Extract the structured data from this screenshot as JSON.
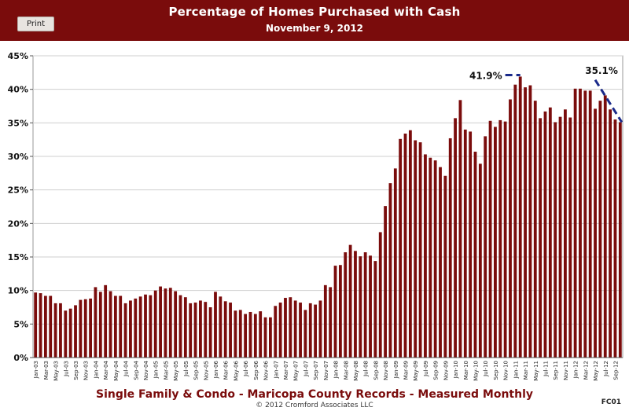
{
  "toolbar": {
    "print_label": "Print"
  },
  "footer": {
    "title": "Single Family & Condo - Maricopa County Records - Measured Monthly",
    "copyright": "© 2012 Cromford Associates LLC",
    "code": "FC01"
  },
  "colors": {
    "header": "#7a0c0c",
    "bar": "#7a0c0c",
    "trend": "#1a2a8a"
  },
  "chart_data": {
    "type": "bar",
    "title": "Percentage of Homes Purchased with Cash",
    "subtitle": "November 9, 2012",
    "xlabel": "",
    "ylabel": "",
    "ylim": [
      0,
      45
    ],
    "yticks": [
      0,
      5,
      10,
      15,
      20,
      25,
      30,
      35,
      40,
      45
    ],
    "ytick_labels": [
      "0%",
      "5%",
      "10%",
      "15%",
      "20%",
      "25%",
      "30%",
      "35%",
      "40%",
      "45%"
    ],
    "grid": true,
    "categories": [
      "Jan-03",
      "Feb-03",
      "Mar-03",
      "Apr-03",
      "May-03",
      "Jun-03",
      "Jul-03",
      "Aug-03",
      "Sep-03",
      "Oct-03",
      "Nov-03",
      "Dec-03",
      "Jan-04",
      "Feb-04",
      "Mar-04",
      "Apr-04",
      "May-04",
      "Jun-04",
      "Jul-04",
      "Aug-04",
      "Sep-04",
      "Oct-04",
      "Nov-04",
      "Dec-04",
      "Jan-05",
      "Feb-05",
      "Mar-05",
      "Apr-05",
      "May-05",
      "Jun-05",
      "Jul-05",
      "Aug-05",
      "Sep-05",
      "Oct-05",
      "Nov-05",
      "Dec-05",
      "Jan-06",
      "Feb-06",
      "Mar-06",
      "Apr-06",
      "May-06",
      "Jun-06",
      "Jul-06",
      "Aug-06",
      "Sep-06",
      "Oct-06",
      "Nov-06",
      "Dec-06",
      "Jan-07",
      "Feb-07",
      "Mar-07",
      "Apr-07",
      "May-07",
      "Jun-07",
      "Jul-07",
      "Aug-07",
      "Sep-07",
      "Oct-07",
      "Nov-07",
      "Dec-07",
      "Jan-08",
      "Feb-08",
      "Mar-08",
      "Apr-08",
      "May-08",
      "Jun-08",
      "Jul-08",
      "Aug-08",
      "Sep-08",
      "Oct-08",
      "Nov-08",
      "Dec-08",
      "Jan-09",
      "Feb-09",
      "Mar-09",
      "Apr-09",
      "May-09",
      "Jun-09",
      "Jul-09",
      "Aug-09",
      "Sep-09",
      "Oct-09",
      "Nov-09",
      "Dec-09",
      "Jan-10",
      "Feb-10",
      "Mar-10",
      "Apr-10",
      "May-10",
      "Jun-10",
      "Jul-10",
      "Aug-10",
      "Sep-10",
      "Oct-10",
      "Nov-10",
      "Dec-10",
      "Jan-11",
      "Feb-11",
      "Mar-11",
      "Apr-11",
      "May-11",
      "Jun-11",
      "Jul-11",
      "Aug-11",
      "Sep-11",
      "Oct-11",
      "Nov-11",
      "Dec-11",
      "Jan-12",
      "Feb-12",
      "Mar-12",
      "Apr-12",
      "May-12",
      "Jun-12",
      "Jul-12",
      "Aug-12",
      "Sep-12",
      "Oct-12"
    ],
    "tick_label_every": 2,
    "series": [
      {
        "values": [
          9.7,
          9.6,
          9.2,
          9.2,
          8.1,
          8.1,
          7.0,
          7.3,
          7.8,
          8.6,
          8.7,
          8.8,
          10.5,
          9.8,
          10.8,
          9.9,
          9.2,
          9.2,
          8.1,
          8.5,
          8.8,
          9.1,
          9.4,
          9.3,
          10.0,
          10.6,
          10.3,
          10.4,
          9.9,
          9.3,
          9.0,
          8.1,
          8.2,
          8.5,
          8.3,
          7.5,
          9.8,
          9.1,
          8.4,
          8.2,
          7.0,
          7.1,
          6.5,
          6.8,
          6.5,
          6.9,
          6.0,
          6.0,
          7.7,
          8.2,
          8.9,
          9.0,
          8.5,
          8.2,
          7.1,
          8.1,
          7.9,
          8.5,
          10.8,
          10.5,
          13.7,
          13.8,
          15.7,
          16.8,
          15.9,
          15.1,
          15.7,
          15.2,
          14.4,
          18.7,
          22.6,
          26.0,
          28.2,
          32.6,
          33.4,
          33.9,
          32.4,
          32.1,
          30.3,
          29.8,
          29.4,
          28.4,
          27.1,
          32.7,
          35.7,
          38.4,
          34.0,
          33.7,
          30.7,
          28.9,
          33.0,
          35.3,
          34.4,
          35.4,
          35.2,
          38.5,
          40.7,
          41.9,
          40.3,
          40.6,
          38.3,
          35.7,
          36.7,
          37.3,
          35.1,
          35.9,
          37.0,
          35.8,
          40.1,
          40.1,
          39.8,
          39.8,
          37.1,
          38.3,
          39.1,
          37.0,
          35.5,
          35.1
        ]
      }
    ],
    "annotations": [
      {
        "label": "41.9%",
        "category": "Feb-11",
        "value": 41.9
      },
      {
        "label": "35.1%",
        "category": "Oct-12",
        "value": 35.1
      }
    ]
  }
}
